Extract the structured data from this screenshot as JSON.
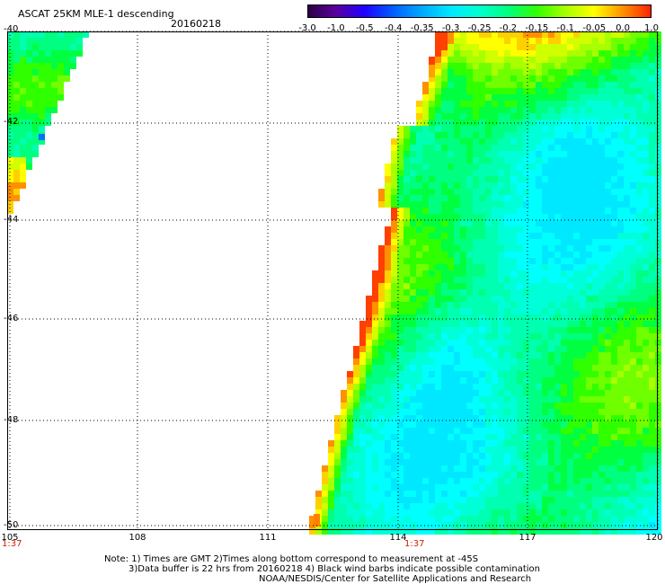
{
  "header": {
    "title": "ASCAT 25KM MLE-1 descending",
    "date": "20160218"
  },
  "colorbar": {
    "labels": [
      "-3.0",
      "-1.0",
      "-0.5",
      "-0.4",
      "-0.35",
      "-0.3",
      "-0.25",
      "-0.2",
      "-0.15",
      "-0.1",
      "-0.05",
      "0.0",
      "1.0"
    ],
    "colors": [
      "#2a0040",
      "#5a00a0",
      "#2000ff",
      "#0060ff",
      "#00a8ff",
      "#00e8ff",
      "#00ffd0",
      "#00ff80",
      "#30ff00",
      "#a8ff00",
      "#ffff00",
      "#ff9000",
      "#ff2000"
    ]
  },
  "map": {
    "lat_labels": [
      "-40",
      "-42",
      "-44",
      "-46",
      "-48",
      "-50"
    ],
    "lon_labels": [
      "105",
      "108",
      "111",
      "114",
      "117",
      "120"
    ],
    "time_labels": [
      "1:37",
      "1:37"
    ]
  },
  "notes": {
    "line1": "Note: 1) Times are GMT 2)Times along bottom correspond to measurement at -45S",
    "line2": "3)Data buffer is 22 hrs from 20160218 4) Black wind barbs indicate possible contamination",
    "line3": "NOAA/NESDIS/Center for Satellite Applications and Research"
  }
}
